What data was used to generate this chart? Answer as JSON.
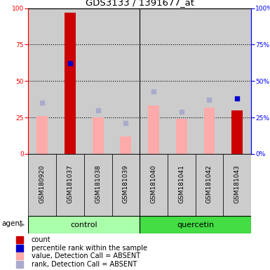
{
  "title": "GDS3133 / 1391677_at",
  "samples": [
    "GSM180920",
    "GSM181037",
    "GSM181038",
    "GSM181039",
    "GSM181040",
    "GSM181041",
    "GSM181042",
    "GSM181043"
  ],
  "count": [
    0,
    97,
    0,
    0,
    0,
    0,
    0,
    30
  ],
  "percentile_rank": [
    null,
    62,
    null,
    null,
    null,
    null,
    null,
    38
  ],
  "value_absent": [
    26,
    null,
    25,
    12,
    33,
    24,
    32,
    null
  ],
  "rank_absent": [
    35,
    null,
    30,
    21,
    43,
    29,
    37,
    null
  ],
  "ylim": [
    0,
    100
  ],
  "yticks": [
    0,
    25,
    50,
    75,
    100
  ],
  "color_count": "#CC0000",
  "color_percentile": "#0000CC",
  "color_value_absent": "#FFAAAA",
  "color_rank_absent": "#AAAACC",
  "color_group_control": "#AAFFAA",
  "color_group_quercetin": "#44DD44",
  "color_sample_bg": "#CCCCCC",
  "bar_width": 0.4,
  "title_fontsize": 9.5,
  "tick_fontsize": 6.5,
  "label_fontsize": 6.5,
  "legend_fontsize": 7,
  "group_label_fontsize": 8
}
